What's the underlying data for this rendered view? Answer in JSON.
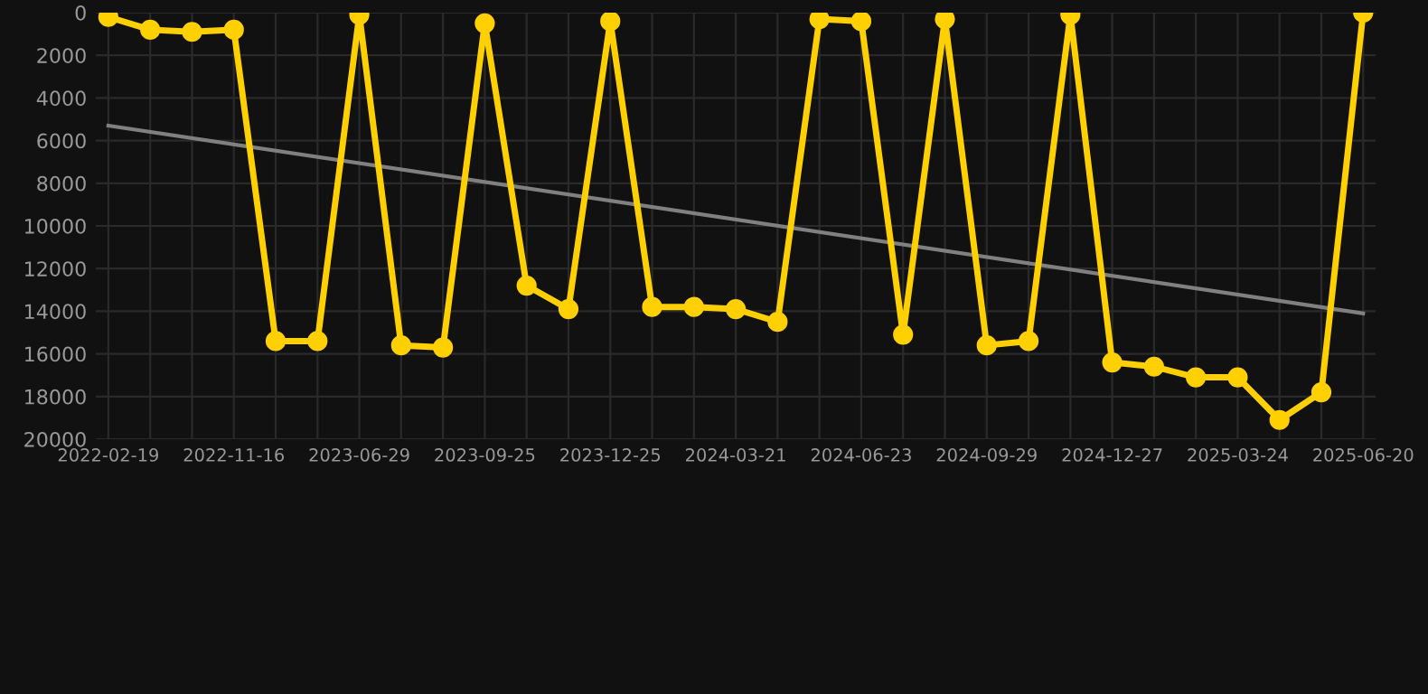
{
  "chart_data": {
    "type": "line",
    "categories": [
      "2022-02-19",
      null,
      null,
      "2022-11-16",
      null,
      null,
      "2023-06-29",
      null,
      null,
      "2023-09-25",
      null,
      null,
      "2023-12-25",
      null,
      null,
      "2024-03-21",
      null,
      null,
      "2024-06-23",
      null,
      null,
      "2024-09-29",
      null,
      null,
      "2024-12-27",
      null,
      null,
      "2025-03-24",
      null,
      null,
      "2025-06-20"
    ],
    "series": [
      {
        "color": "#ffd000",
        "marker": "circle",
        "values": [
          200,
          800,
          900,
          800,
          15400,
          15400,
          100,
          15600,
          15700,
          500,
          12800,
          13900,
          400,
          13800,
          13800,
          13900,
          14500,
          300,
          400,
          15100,
          300,
          15600,
          15400,
          100,
          16400,
          16600,
          17100,
          17100,
          19100,
          17800,
          0
        ]
      },
      {
        "type": "line",
        "color": "#808080",
        "marker": "none",
        "values": [
          5300,
          null,
          null,
          null,
          null,
          null,
          null,
          null,
          null,
          null,
          null,
          null,
          null,
          null,
          null,
          null,
          null,
          null,
          null,
          null,
          null,
          null,
          null,
          null,
          null,
          null,
          null,
          null,
          null,
          null,
          14100
        ]
      }
    ],
    "ylim": [
      20000,
      0
    ],
    "yticks": [
      0,
      2000,
      4000,
      6000,
      8000,
      10000,
      12000,
      14000,
      16000,
      18000,
      20000
    ],
    "grid": true,
    "line_style": "solid"
  }
}
